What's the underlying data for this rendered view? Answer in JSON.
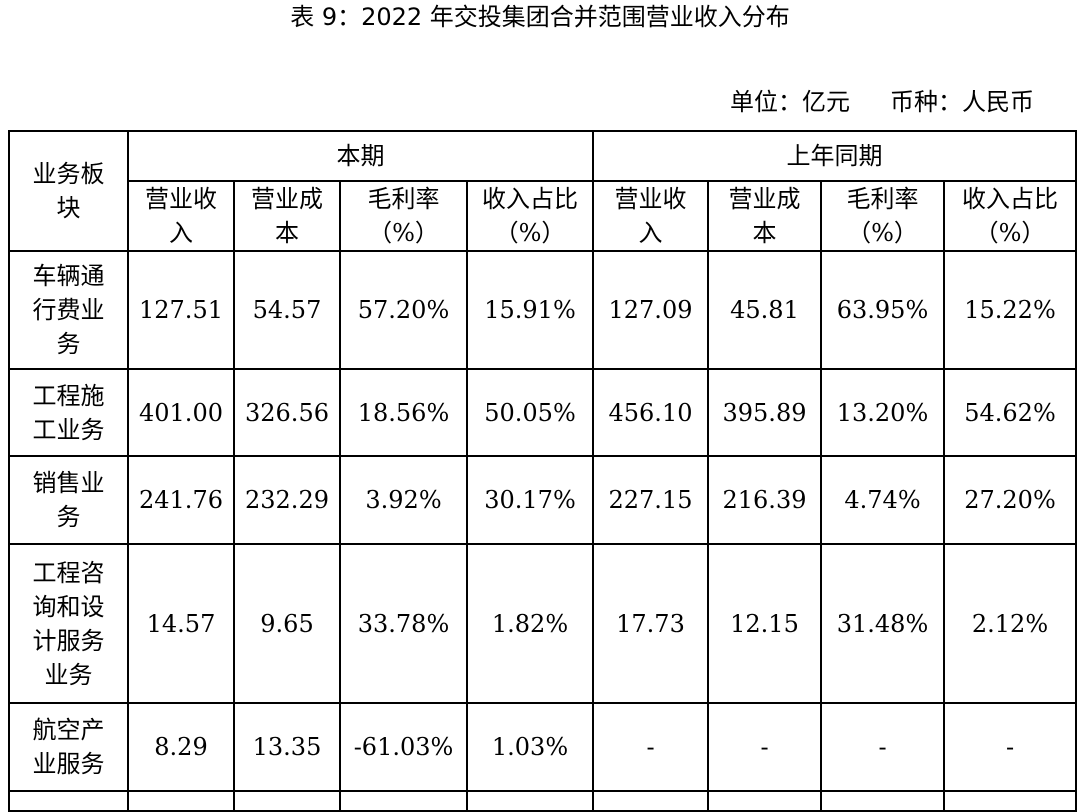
{
  "header": {
    "title": "表 9：2022 年交投集团合并范围营业收入分布",
    "unit": "单位：亿元",
    "currency": "币种：人民币"
  },
  "table": {
    "corner": "业务板块",
    "groups": [
      "本期",
      "上年同期"
    ],
    "columns": [
      "营业收入",
      "营业成本",
      "毛利率（%）",
      "收入占比（%）",
      "营业收入",
      "营业成本",
      "毛利率（%）",
      "收入占比（%）"
    ],
    "rows": [
      [
        "车辆通行费业务",
        "127.51",
        "54.57",
        "57.20%",
        "15.91%",
        "127.09",
        "45.81",
        "63.95%",
        "15.22%"
      ],
      [
        "工程施工业务",
        "401.00",
        "326.56",
        "18.56%",
        "50.05%",
        "456.10",
        "395.89",
        "13.20%",
        "54.62%"
      ],
      [
        "销售业务",
        "241.76",
        "232.29",
        "3.92%",
        "30.17%",
        "227.15",
        "216.39",
        "4.74%",
        "27.20%"
      ],
      [
        "工程咨询和设计服务业务",
        "14.57",
        "9.65",
        "33.78%",
        "1.82%",
        "17.73",
        "12.15",
        "31.48%",
        "2.12%"
      ],
      [
        "航空产业服务",
        "8.29",
        "13.35",
        "-61.03%",
        "1.03%",
        "-",
        "-",
        "-",
        "-"
      ]
    ]
  }
}
